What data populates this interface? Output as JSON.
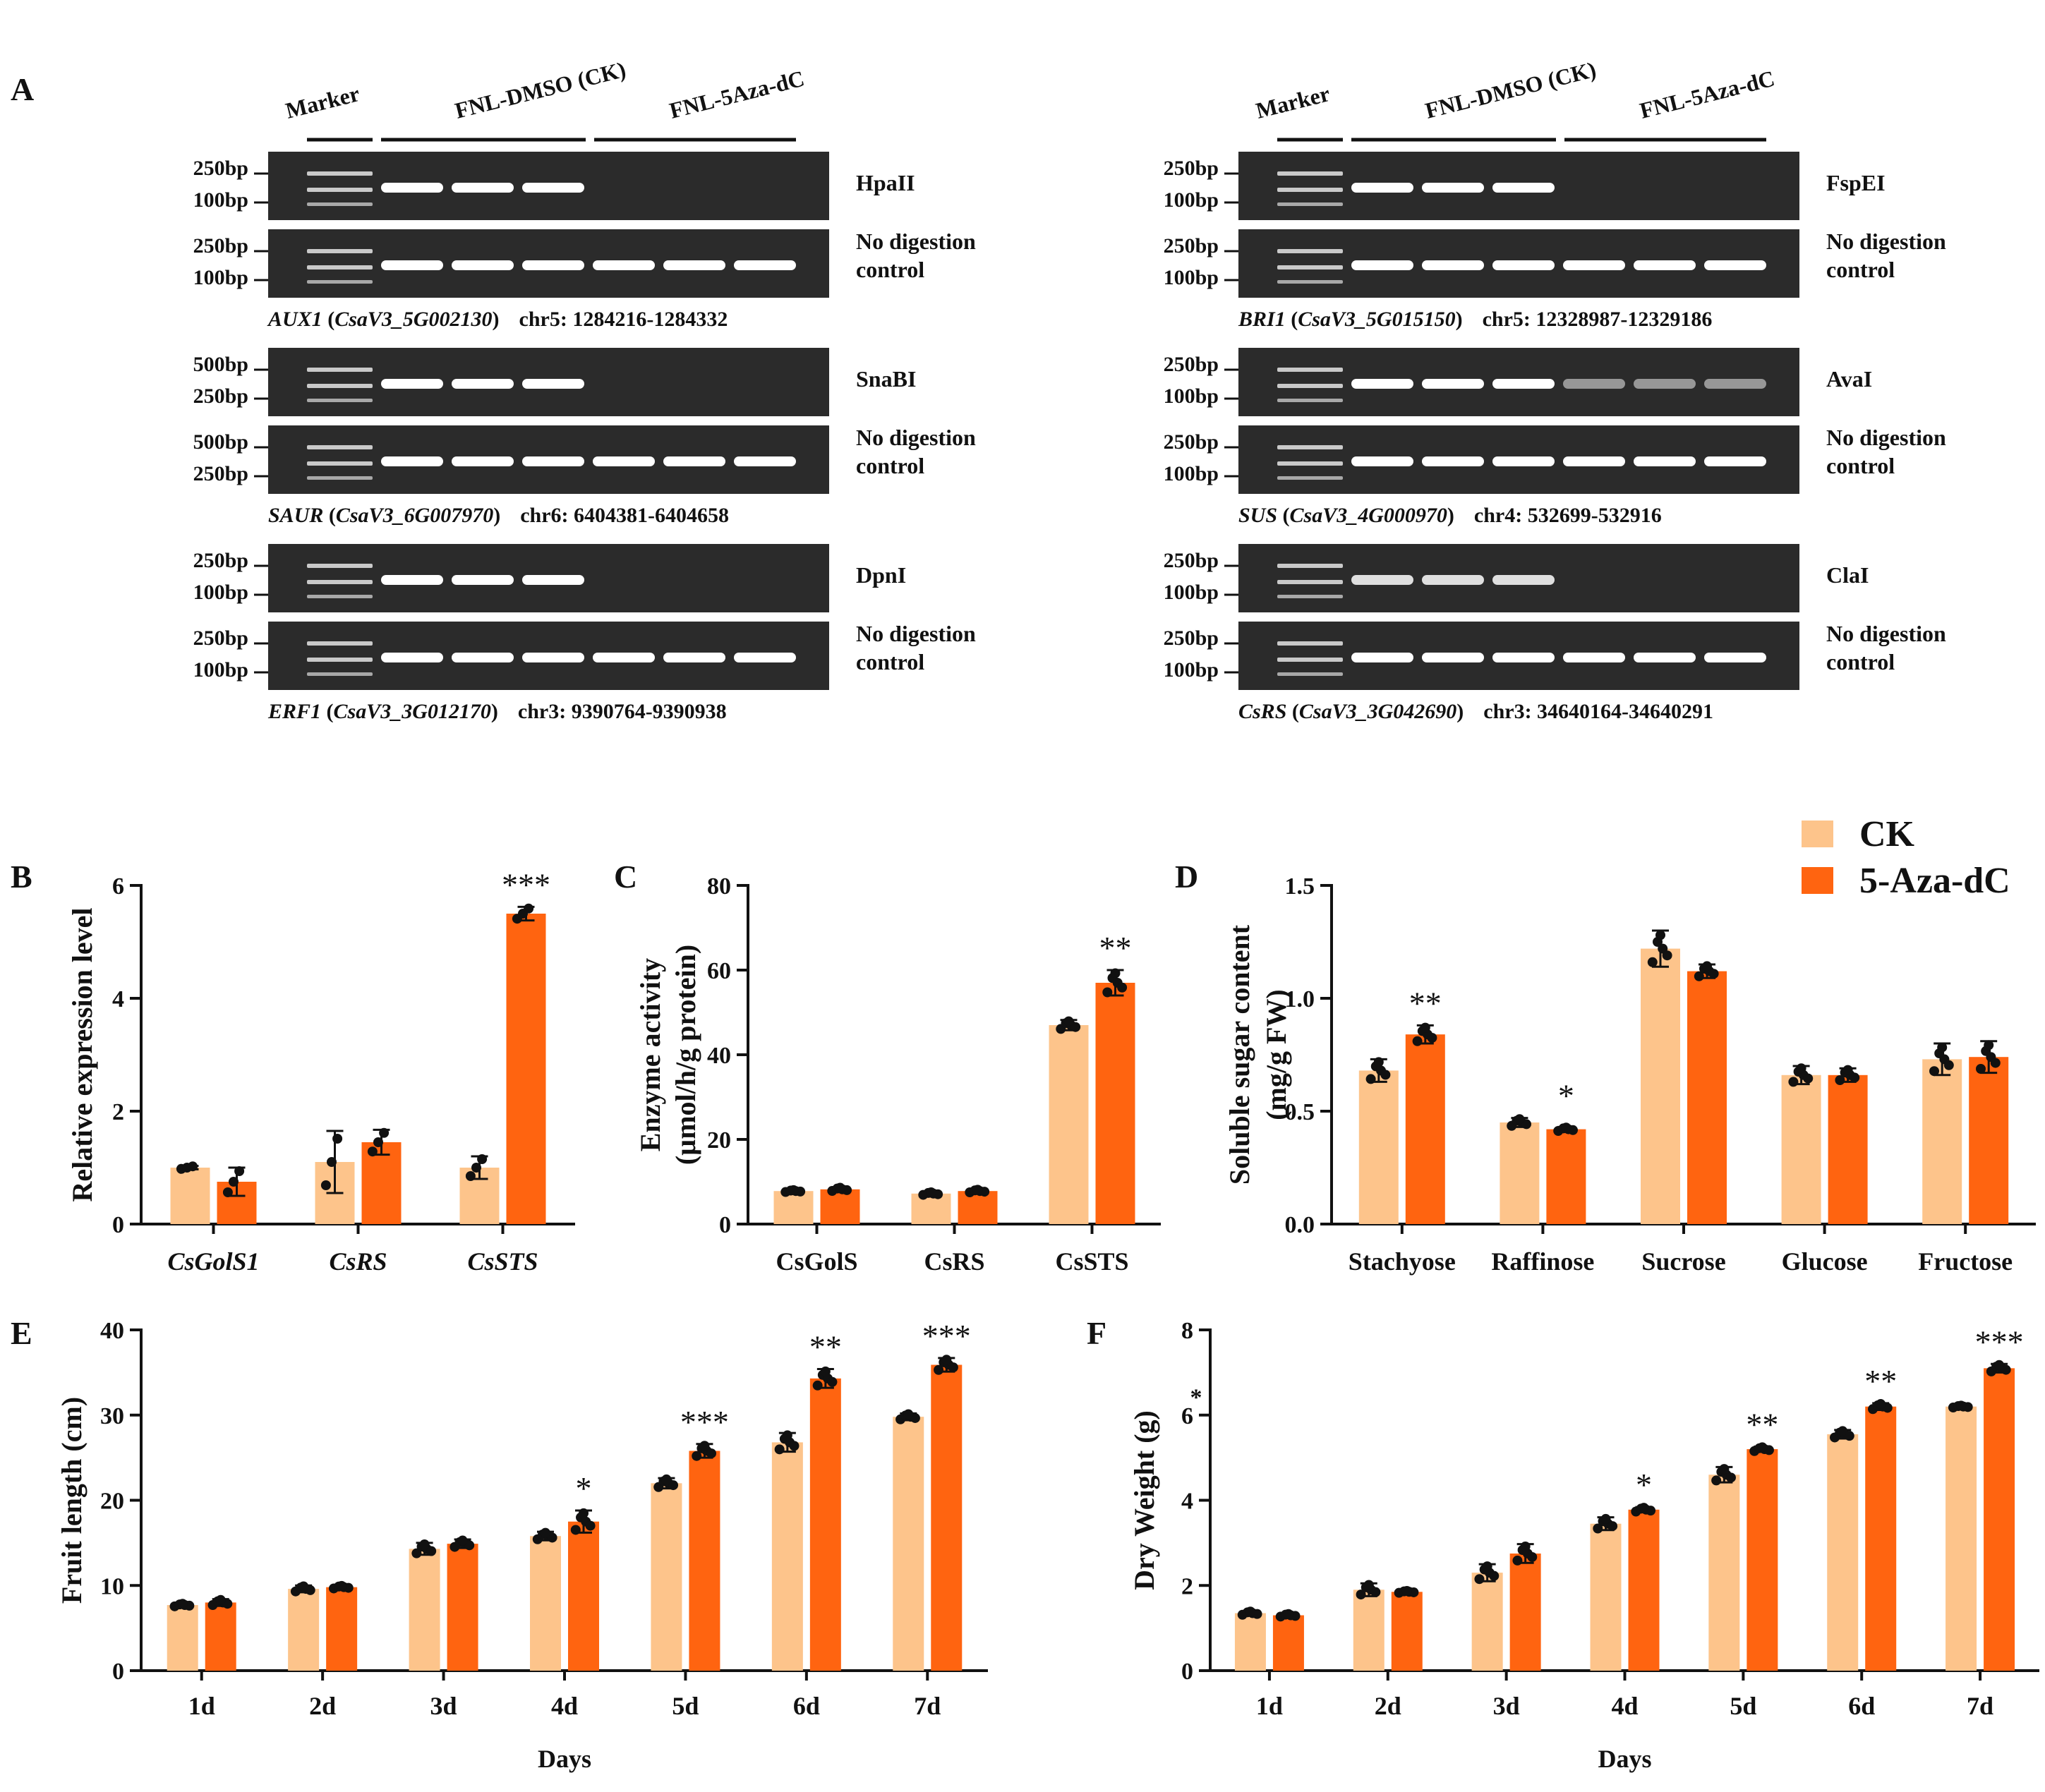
{
  "panel_A": {
    "letter": "A",
    "marker_label": "Marker",
    "ck_label": "FNL-DMSO (CK)",
    "aza_label": "FNL-5Aza-dC",
    "no_digestion_line1": "No digestion",
    "no_digestion_line2": "control",
    "genes": [
      {
        "enzyme": "HpaII",
        "bp_top": "250bp",
        "bp_bot": "100bp",
        "ctrl_bp_top": "250bp",
        "ctrl_bp_bot": "100bp",
        "gene_italic": "AUX1",
        "paren_open": " (",
        "gene_id": "CsaV3_5G002130",
        "paren_close": ")",
        "locus": "chr5: 1284216-1284332",
        "digest_bands": [
          1,
          1,
          1,
          0,
          0,
          0
        ]
      },
      {
        "enzyme": "SnaBI",
        "bp_top": "500bp",
        "bp_bot": "250bp",
        "ctrl_bp_top": "500bp",
        "ctrl_bp_bot": "250bp",
        "gene_italic": "SAUR",
        "paren_open": " (",
        "gene_id": "CsaV3_6G007970",
        "paren_close": ")",
        "locus": "chr6: 6404381-6404658",
        "digest_bands": [
          1,
          1,
          1,
          0,
          0,
          0
        ]
      },
      {
        "enzyme": "DpnI",
        "bp_top": "250bp",
        "bp_bot": "100bp",
        "ctrl_bp_top": "250bp",
        "ctrl_bp_bot": "100bp",
        "gene_italic": "ERF1",
        "paren_open": " (",
        "gene_id": "CsaV3_3G012170",
        "paren_close": ")",
        "locus": "chr3: 9390764-9390938",
        "digest_bands": [
          1,
          1,
          1,
          0,
          0,
          0
        ]
      },
      {
        "enzyme": "FspEI",
        "bp_top": "250bp",
        "bp_bot": "100bp",
        "ctrl_bp_top": "250bp",
        "ctrl_bp_bot": "100bp",
        "gene_italic": "BRI1",
        "paren_open": " (",
        "gene_id": "CsaV3_5G015150",
        "paren_close": ")",
        "locus": "chr5: 12328987-12329186",
        "digest_bands": [
          1,
          1,
          1,
          0,
          0,
          0
        ]
      },
      {
        "enzyme": "AvaI",
        "bp_top": "250bp",
        "bp_bot": "100bp",
        "ctrl_bp_top": "250bp",
        "ctrl_bp_bot": "100bp",
        "gene_italic": "SUS",
        "paren_open": " (",
        "gene_id": "CsaV3_4G000970",
        "paren_close": ")",
        "locus": "chr4: 532699-532916",
        "digest_bands": [
          1,
          1,
          1,
          0.35,
          0.35,
          0.35
        ]
      },
      {
        "enzyme": "ClaI",
        "bp_top": "250bp",
        "bp_bot": "100bp",
        "ctrl_bp_top": "250bp",
        "ctrl_bp_bot": "100bp",
        "gene_italic": "CsRS",
        "paren_open": " (",
        "gene_id": "CsaV3_3G042690",
        "paren_close": ")",
        "locus": "chr3: 34640164-34640291",
        "digest_bands": [
          0.8,
          0.8,
          0.8,
          0,
          0,
          0
        ]
      }
    ]
  },
  "legend": {
    "items": [
      {
        "name": "CK",
        "color": "#FDC48B"
      },
      {
        "name": "5-Aza-dC",
        "color": "#FF6410"
      }
    ]
  },
  "chart_data": [
    {
      "panel": "B",
      "type": "bar",
      "ylabel": "Relative expression level",
      "xlabel": "",
      "ylim": [
        0,
        6
      ],
      "yticks": [
        0,
        2,
        4,
        6
      ],
      "categories": [
        "CsGolS1",
        "CsRS",
        "CsSTS"
      ],
      "categories_italic": true,
      "series": [
        {
          "name": "CK",
          "values": [
            1.0,
            1.1,
            1.0
          ],
          "errors": [
            0.03,
            0.55,
            0.2
          ]
        },
        {
          "name": "5-Aza-dC",
          "values": [
            0.75,
            1.45,
            5.5
          ],
          "errors": [
            0.25,
            0.22,
            0.12
          ]
        }
      ],
      "significance": [
        "",
        "",
        "***"
      ]
    },
    {
      "panel": "C",
      "type": "bar",
      "ylabel": "Enzyme activity",
      "ylabel2": "(µmol/h/g protein)",
      "xlabel": "",
      "ylim": [
        0,
        80
      ],
      "yticks": [
        0,
        20,
        40,
        60,
        80
      ],
      "categories": [
        "CsGolS",
        "CsRS",
        "CsSTS"
      ],
      "categories_italic": false,
      "series": [
        {
          "name": "CK",
          "values": [
            7.8,
            7.2,
            47
          ],
          "errors": [
            0.3,
            0.4,
            1.2
          ]
        },
        {
          "name": "5-Aza-dC",
          "values": [
            8.2,
            7.8,
            57
          ],
          "errors": [
            0.5,
            0.4,
            3.0
          ]
        }
      ],
      "significance": [
        "",
        "",
        "**"
      ]
    },
    {
      "panel": "D",
      "type": "bar",
      "ylabel": "Soluble sugar content",
      "ylabel2": "(mg/g FW)",
      "xlabel": "",
      "ylim": [
        0,
        1.5
      ],
      "yticks": [
        "0.0",
        "0.5",
        "1.0",
        "1.5"
      ],
      "categories": [
        "Stachyose",
        "Raffinose",
        "Sucrose",
        "Glucose",
        "Fructose"
      ],
      "categories_italic": false,
      "series": [
        {
          "name": "CK",
          "values": [
            0.68,
            0.45,
            1.22,
            0.66,
            0.73
          ],
          "errors": [
            0.05,
            0.02,
            0.08,
            0.04,
            0.07
          ]
        },
        {
          "name": "5-Aza-dC",
          "values": [
            0.84,
            0.42,
            1.12,
            0.66,
            0.74
          ],
          "errors": [
            0.04,
            0.01,
            0.03,
            0.03,
            0.07
          ]
        }
      ],
      "significance": [
        "**",
        "*",
        "",
        "",
        ""
      ]
    },
    {
      "panel": "E",
      "type": "bar",
      "ylabel": "Fruit length (cm)",
      "xlabel": "Days",
      "ylim": [
        0,
        40
      ],
      "yticks": [
        0,
        10,
        20,
        30,
        40
      ],
      "categories": [
        "1d",
        "2d",
        "3d",
        "4d",
        "5d",
        "6d",
        "7d"
      ],
      "categories_italic": false,
      "series": [
        {
          "name": "CK",
          "values": [
            7.7,
            9.6,
            14.3,
            15.8,
            22.0,
            26.8,
            29.8
          ],
          "errors": [
            0.2,
            0.4,
            0.7,
            0.5,
            0.6,
            1.1,
            0.4
          ]
        },
        {
          "name": "5-Aza-dC",
          "values": [
            8.0,
            9.8,
            14.9,
            17.5,
            25.8,
            34.3,
            35.9
          ],
          "errors": [
            0.4,
            0.2,
            0.5,
            1.3,
            0.8,
            1.1,
            0.8
          ]
        }
      ],
      "significance": [
        "",
        "",
        "",
        "*",
        "***",
        "**",
        "***"
      ]
    },
    {
      "panel": "F",
      "type": "bar",
      "ylabel": "Dry Weight (g)",
      "xlabel": "Days",
      "ylim": [
        0,
        8
      ],
      "yticks": [
        0,
        2,
        4,
        6,
        8
      ],
      "categories": [
        "1d",
        "2d",
        "3d",
        "4d",
        "5d",
        "6d",
        "7d"
      ],
      "categories_italic": false,
      "series": [
        {
          "name": "CK",
          "values": [
            1.35,
            1.9,
            2.3,
            3.45,
            4.6,
            5.55,
            6.2
          ],
          "errors": [
            0.05,
            0.15,
            0.2,
            0.15,
            0.18,
            0.1,
            0.03
          ]
        },
        {
          "name": "5-Aza-dC",
          "values": [
            1.3,
            1.85,
            2.75,
            3.78,
            5.2,
            6.2,
            7.1
          ],
          "errors": [
            0.04,
            0.03,
            0.22,
            0.06,
            0.06,
            0.08,
            0.1
          ]
        }
      ],
      "significance": [
        "",
        "",
        "",
        "*",
        "**",
        "**",
        "***"
      ],
      "stray_mark": "*"
    }
  ]
}
